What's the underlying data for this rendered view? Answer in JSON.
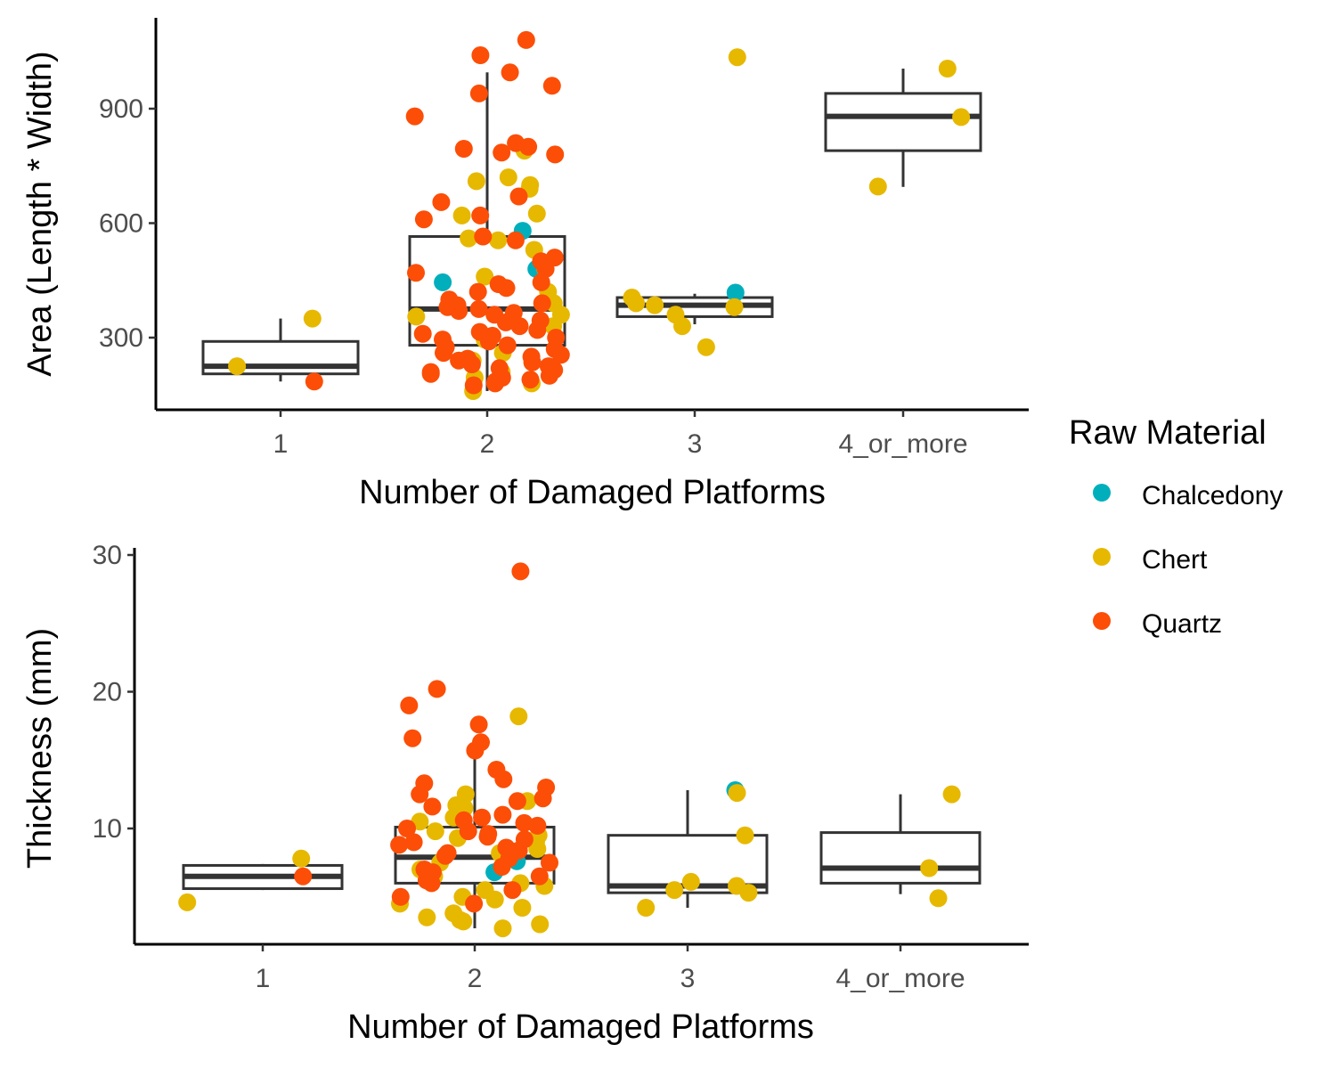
{
  "legend": {
    "title": "Raw Material",
    "items": [
      {
        "label": "Chalcedony",
        "color": "#00AFBB"
      },
      {
        "label": "Chert",
        "color": "#E7B800"
      },
      {
        "label": "Quartz",
        "color": "#FC4E07"
      }
    ]
  },
  "chart_data": [
    {
      "type": "box",
      "xlabel": "Number of Damaged Platforms",
      "ylabel": "Area (Length * Width)",
      "categories": [
        "1",
        "2",
        "3",
        "4_or_more"
      ],
      "ylim": [
        130,
        1110
      ],
      "yticks": [
        300,
        600,
        900
      ],
      "grid": false,
      "legend_position": "right",
      "boxes": [
        {
          "category": "1",
          "whisker_low": 185,
          "q1": 205,
          "median": 225,
          "q3": 290,
          "whisker_high": 350
        },
        {
          "category": "2",
          "whisker_low": 160,
          "q1": 280,
          "median": 375,
          "q3": 565,
          "whisker_high": 995
        },
        {
          "category": "3",
          "whisker_low": 335,
          "q1": 355,
          "median": 385,
          "q3": 405,
          "whisker_high": 415
        },
        {
          "category": "4_or_more",
          "whisker_low": 695,
          "q1": 790,
          "median": 880,
          "q3": 940,
          "whisker_high": 1005
        }
      ],
      "points": [
        {
          "category": "1",
          "material": "Chert",
          "values": [
            350,
            225
          ]
        },
        {
          "category": "1",
          "material": "Quartz",
          "values": [
            185
          ]
        },
        {
          "category": "2",
          "material": "Chalcedony",
          "values": [
            580,
            480,
            445
          ]
        },
        {
          "category": "2",
          "material": "Chert",
          "values": [
            790,
            720,
            710,
            700,
            690,
            625,
            620,
            560,
            555,
            530,
            480,
            460,
            420,
            390,
            360,
            355,
            330,
            295,
            260,
            240,
            210,
            195,
            180,
            160
          ]
        },
        {
          "category": "2",
          "material": "Quartz",
          "values": [
            1080,
            1040,
            995,
            960,
            940,
            880,
            810,
            800,
            795,
            785,
            780,
            670,
            655,
            620,
            610,
            565,
            555,
            510,
            500,
            480,
            470,
            445,
            440,
            430,
            420,
            400,
            390,
            385,
            380,
            375,
            370,
            365,
            360,
            345,
            340,
            330,
            320,
            315,
            310,
            305,
            300,
            295,
            290,
            280,
            275,
            270,
            260,
            255,
            250,
            245,
            240,
            235,
            230,
            225,
            220,
            215,
            210,
            205,
            200,
            195,
            190,
            185,
            180,
            175
          ]
        },
        {
          "category": "3",
          "material": "Chalcedony",
          "values": [
            418
          ]
        },
        {
          "category": "3",
          "material": "Chert",
          "values": [
            1035,
            405,
            390,
            385,
            380,
            360,
            330,
            275
          ]
        },
        {
          "category": "4_or_more",
          "material": "Chert",
          "values": [
            1005,
            878,
            696
          ]
        }
      ]
    },
    {
      "type": "box",
      "xlabel": "Number of Damaged Platforms",
      "ylabel": "Thickness (mm)",
      "categories": [
        "1",
        "2",
        "3",
        "4_or_more"
      ],
      "ylim": [
        1.9,
        30.3
      ],
      "yticks": [
        10,
        20,
        30
      ],
      "grid": false,
      "legend_position": "right",
      "boxes": [
        {
          "category": "1",
          "whisker_low": 5.5,
          "q1": 5.6,
          "median": 6.5,
          "q3": 7.3,
          "whisker_high": 7.4
        },
        {
          "category": "2",
          "whisker_low": 2.7,
          "q1": 6.0,
          "median": 7.9,
          "q3": 10.1,
          "whisker_high": 15.6
        },
        {
          "category": "3",
          "whisker_low": 4.2,
          "q1": 5.3,
          "median": 5.8,
          "q3": 9.5,
          "whisker_high": 12.8
        },
        {
          "category": "4_or_more",
          "whisker_low": 5.2,
          "q1": 6.0,
          "median": 7.1,
          "q3": 9.7,
          "whisker_high": 12.5
        }
      ],
      "points": [
        {
          "category": "1",
          "material": "Chert",
          "values": [
            7.8,
            4.6
          ]
        },
        {
          "category": "1",
          "material": "Quartz",
          "values": [
            6.5
          ]
        },
        {
          "category": "2",
          "material": "Chalcedony",
          "values": [
            7.6,
            6.8
          ]
        },
        {
          "category": "2",
          "material": "Chert",
          "values": [
            18.2,
            12.5,
            12.0,
            11.7,
            11.5,
            10.8,
            10.5,
            9.8,
            9.5,
            9.3,
            9.0,
            8.5,
            8.2,
            7.5,
            7.0,
            6.5,
            6.0,
            5.8,
            5.5,
            5.0,
            4.8,
            4.5,
            4.2,
            3.8,
            3.5,
            3.3,
            3.2,
            3.0,
            2.7
          ]
        },
        {
          "category": "2",
          "material": "Quartz",
          "values": [
            28.8,
            20.2,
            19.0,
            17.6,
            16.6,
            16.3,
            15.7,
            14.3,
            13.6,
            13.3,
            13.0,
            12.5,
            12.2,
            12.0,
            11.6,
            11.0,
            10.8,
            10.6,
            10.4,
            10.2,
            10.0,
            9.8,
            9.6,
            9.4,
            9.2,
            9.0,
            8.8,
            8.6,
            8.4,
            8.2,
            8.0,
            7.8,
            7.5,
            7.2,
            7.0,
            6.8,
            6.5,
            6.2,
            6.0,
            5.5,
            5.0,
            4.5
          ]
        },
        {
          "category": "3",
          "material": "Chalcedony",
          "values": [
            12.8
          ]
        },
        {
          "category": "3",
          "material": "Chert",
          "values": [
            12.6,
            9.5,
            6.1,
            5.8,
            5.5,
            5.3,
            4.2
          ]
        },
        {
          "category": "4_or_more",
          "material": "Chert",
          "values": [
            12.5,
            7.1,
            4.9
          ]
        }
      ]
    }
  ]
}
